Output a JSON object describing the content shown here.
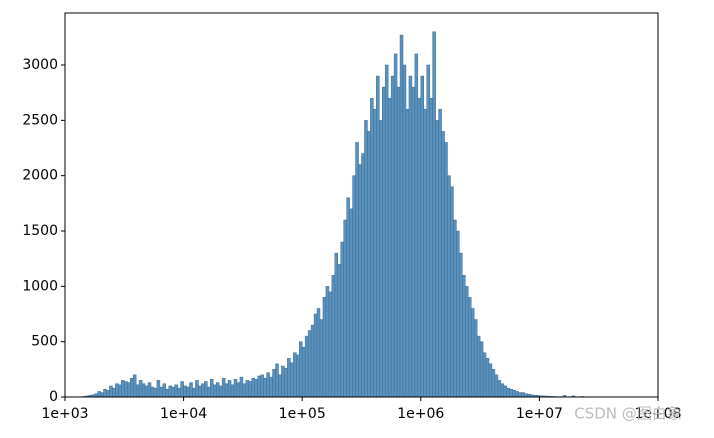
{
  "chart_data": {
    "type": "histogram",
    "bins": [
      1000,
      1059,
      1122,
      1189,
      1259,
      1334,
      1413,
      1496,
      1585,
      1679,
      1778,
      1884,
      1995,
      2113,
      2239,
      2371,
      2512,
      2661,
      2818,
      2985,
      3162,
      3350,
      3548,
      3758,
      3981,
      4217,
      4467,
      4732,
      5012,
      5309,
      5623,
      5957,
      6310,
      6683,
      7079,
      7499,
      7943,
      8414,
      8913,
      9441,
      10000,
      10590,
      11220,
      11890,
      12590,
      13340,
      14130,
      14960,
      15850,
      16790,
      17780,
      18840,
      19950,
      21130,
      22390,
      23710,
      25120,
      26610,
      28180,
      29850,
      31620,
      33500,
      35480,
      37580,
      39810,
      42170,
      44670,
      47320,
      50120,
      53090,
      56230,
      59570,
      63100,
      66830,
      70790,
      74990,
      79430,
      84140,
      89130,
      94410,
      100000,
      105900,
      112200,
      118900,
      125900,
      133400,
      141300,
      149600,
      158500,
      167900,
      177800,
      188400,
      199500,
      211300,
      223900,
      237100,
      251200,
      266100,
      281800,
      298500,
      316200,
      335000,
      354800,
      375800,
      398100,
      421700,
      446700,
      473200,
      501200,
      530900,
      562300,
      595700,
      631000,
      668300,
      707900,
      749900,
      794300,
      841400,
      891300,
      944100,
      1000000,
      1059000,
      1122000,
      1189000,
      1259000,
      1334000,
      1413000,
      1496000,
      1585000,
      1679000,
      1778000,
      1884000,
      1995000,
      2113000,
      2239000,
      2371000,
      2512000,
      2661000,
      2818000,
      2985000,
      3162000,
      3350000,
      3548000,
      3758000,
      3981000,
      4217000,
      4467000,
      4732000,
      5012000,
      5309000,
      5623000,
      5957000,
      6310000,
      6683000,
      7079000,
      7499000,
      7943000,
      8414000,
      8913000,
      9441000,
      10000000,
      10590000,
      11220000,
      11890000,
      12590000,
      13340000,
      14130000,
      14960000,
      15850000,
      16790000,
      17780000,
      18840000,
      19950000,
      21130000,
      22390000,
      23710000,
      25120000,
      26610000,
      28180000,
      29850000,
      31620000,
      33500000,
      35480000,
      37580000,
      39810000,
      42170000,
      44670000,
      47320000,
      50120000,
      53090000,
      56230000,
      59570000,
      63100000,
      66830000,
      70790000,
      74990000,
      79430000,
      84140000,
      89130000,
      94410000,
      100000000
    ],
    "values": [
      0,
      0,
      0,
      0,
      0,
      0,
      5,
      10,
      15,
      20,
      30,
      50,
      40,
      70,
      60,
      100,
      80,
      120,
      110,
      150,
      140,
      130,
      170,
      200,
      110,
      150,
      120,
      100,
      130,
      90,
      80,
      150,
      90,
      120,
      70,
      100,
      90,
      110,
      80,
      140,
      100,
      90,
      130,
      80,
      150,
      100,
      120,
      140,
      90,
      160,
      110,
      130,
      100,
      170,
      120,
      150,
      110,
      160,
      130,
      180,
      120,
      150,
      140,
      170,
      160,
      190,
      200,
      170,
      220,
      180,
      250,
      300,
      200,
      280,
      260,
      350,
      310,
      400,
      380,
      500,
      450,
      550,
      600,
      650,
      750,
      800,
      700,
      900,
      1000,
      950,
      1100,
      1300,
      1200,
      1400,
      1600,
      1800,
      1700,
      2000,
      2300,
      2100,
      2200,
      2500,
      2400,
      2700,
      2600,
      2900,
      2500,
      2800,
      3000,
      2700,
      2900,
      3100,
      2800,
      3270,
      3000,
      2600,
      2900,
      2800,
      3100,
      2700,
      2900,
      2600,
      3000,
      2700,
      3300,
      2500,
      2600,
      2400,
      2300,
      2000,
      1900,
      1600,
      1500,
      1300,
      1100,
      1000,
      900,
      800,
      700,
      550,
      500,
      400,
      350,
      300,
      250,
      200,
      150,
      120,
      100,
      80,
      70,
      60,
      50,
      40,
      40,
      30,
      25,
      20,
      15,
      15,
      10,
      10,
      8,
      6,
      5,
      4,
      3,
      3,
      15,
      2,
      3,
      10,
      2,
      0,
      5,
      0,
      0,
      0,
      0,
      0,
      0,
      0,
      0,
      0,
      0,
      0,
      0,
      0,
      0,
      0,
      0,
      0,
      0,
      0,
      0,
      0,
      0,
      0,
      0,
      0
    ],
    "color": "#5b92bd",
    "edge_color": "#3a6c94",
    "xscale": "log",
    "xlim": [
      1000,
      100000000
    ],
    "xticks": [
      {
        "value": 1000,
        "label": "1e+03"
      },
      {
        "value": 10000,
        "label": "1e+04"
      },
      {
        "value": 100000,
        "label": "1e+05"
      },
      {
        "value": 1000000,
        "label": "1e+06"
      },
      {
        "value": 10000000,
        "label": "1e+07"
      },
      {
        "value": 100000000,
        "label": "1e+08"
      }
    ],
    "ylim": [
      0,
      3470
    ],
    "yticks": [
      0,
      500,
      1000,
      1500,
      2000,
      2500,
      3000
    ],
    "watermark": "CSDN @图白象"
  }
}
